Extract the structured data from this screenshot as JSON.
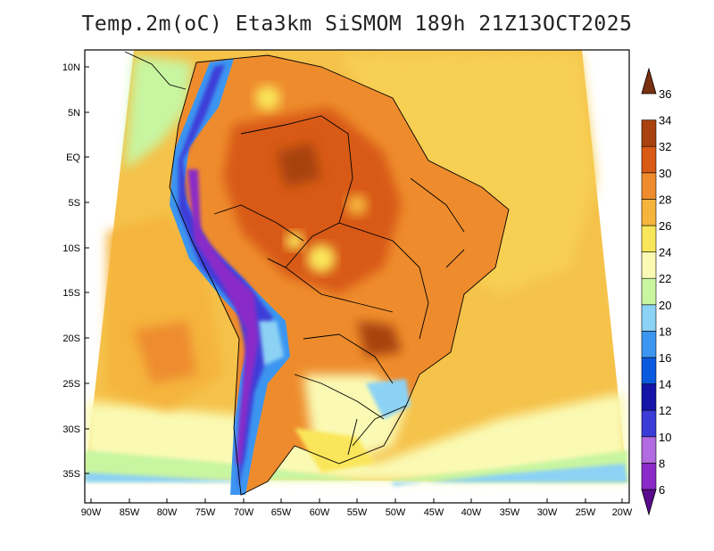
{
  "title": "Temp.2m(oC) Eta3km SiSMOM 189h 21Z13OCT2025",
  "map": {
    "lat_labels": [
      "10N",
      "5N",
      "EQ",
      "5S",
      "10S",
      "15S",
      "20S",
      "25S",
      "30S",
      "35S"
    ],
    "lon_labels": [
      "90W",
      "85W",
      "80W",
      "75W",
      "70W",
      "65W",
      "60W",
      "55W",
      "50W",
      "45W",
      "40W",
      "35W",
      "30W",
      "25W",
      "20W"
    ],
    "field": "2 m air temperature",
    "units": "oC"
  },
  "colorbar": {
    "labels": [
      "6",
      "8",
      "10",
      "12",
      "14",
      "16",
      "18",
      "20",
      "22",
      "24",
      "26",
      "28",
      "30",
      "32",
      "34",
      "36"
    ],
    "colors": [
      "#5a0a8c",
      "#8a2bc8",
      "#b26be0",
      "#3c3cd8",
      "#1414a8",
      "#0a5ae0",
      "#3c96f0",
      "#8cd2f5",
      "#c8f5a0",
      "#fafab4",
      "#fae65a",
      "#f5b43c",
      "#ee8c2d",
      "#d85a14",
      "#a8420f",
      "#783010"
    ]
  }
}
